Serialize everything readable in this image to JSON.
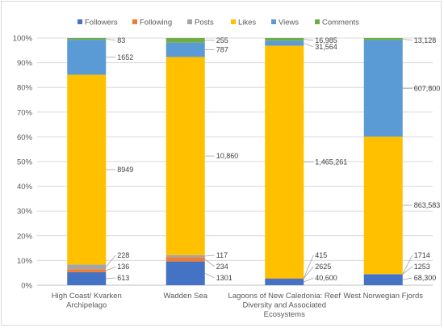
{
  "chart_data": {
    "type": "bar",
    "stacked": "percent",
    "categories": [
      [
        "High Coast/ Kvarken",
        "Archipelago"
      ],
      [
        "Wadden Sea"
      ],
      [
        "Lagoons of New Caledonia: Reef",
        "Diversity and Associated",
        "Ecosystems"
      ],
      [
        "West Norwegian Fjords"
      ]
    ],
    "series": [
      {
        "name": "Followers",
        "color": "#4472c4",
        "values": [
          613,
          1301,
          40600,
          68300
        ]
      },
      {
        "name": "Following",
        "color": "#ed7d31",
        "values": [
          136,
          234,
          2625,
          1253
        ]
      },
      {
        "name": "Posts",
        "color": "#a5a5a5",
        "values": [
          228,
          117,
          415,
          1714
        ]
      },
      {
        "name": "Likes",
        "color": "#ffc000",
        "values": [
          8949,
          10860,
          1465261,
          863583
        ]
      },
      {
        "name": "Views",
        "color": "#5b9bd5",
        "values": [
          1652,
          787,
          31564,
          607800
        ]
      },
      {
        "name": "Comments",
        "color": "#70ad47",
        "values": [
          83,
          255,
          16985,
          13128
        ]
      }
    ],
    "data_labels": [
      [
        "613",
        "136",
        "228",
        "8949",
        "1652",
        "83"
      ],
      [
        "1301",
        "234",
        "117",
        "10,860",
        "787",
        "255"
      ],
      [
        "40,600",
        "2625",
        "415",
        "1,465,261",
        "31,564",
        "16,985"
      ],
      [
        "68,300",
        "1253",
        "1714",
        "863,583",
        "607,800",
        "13,128"
      ]
    ],
    "y_ticks": [
      "0%",
      "10%",
      "20%",
      "30%",
      "40%",
      "50%",
      "60%",
      "70%",
      "80%",
      "90%",
      "100%"
    ],
    "ylim": [
      0,
      100
    ],
    "grid": true,
    "legend_position": "top"
  }
}
